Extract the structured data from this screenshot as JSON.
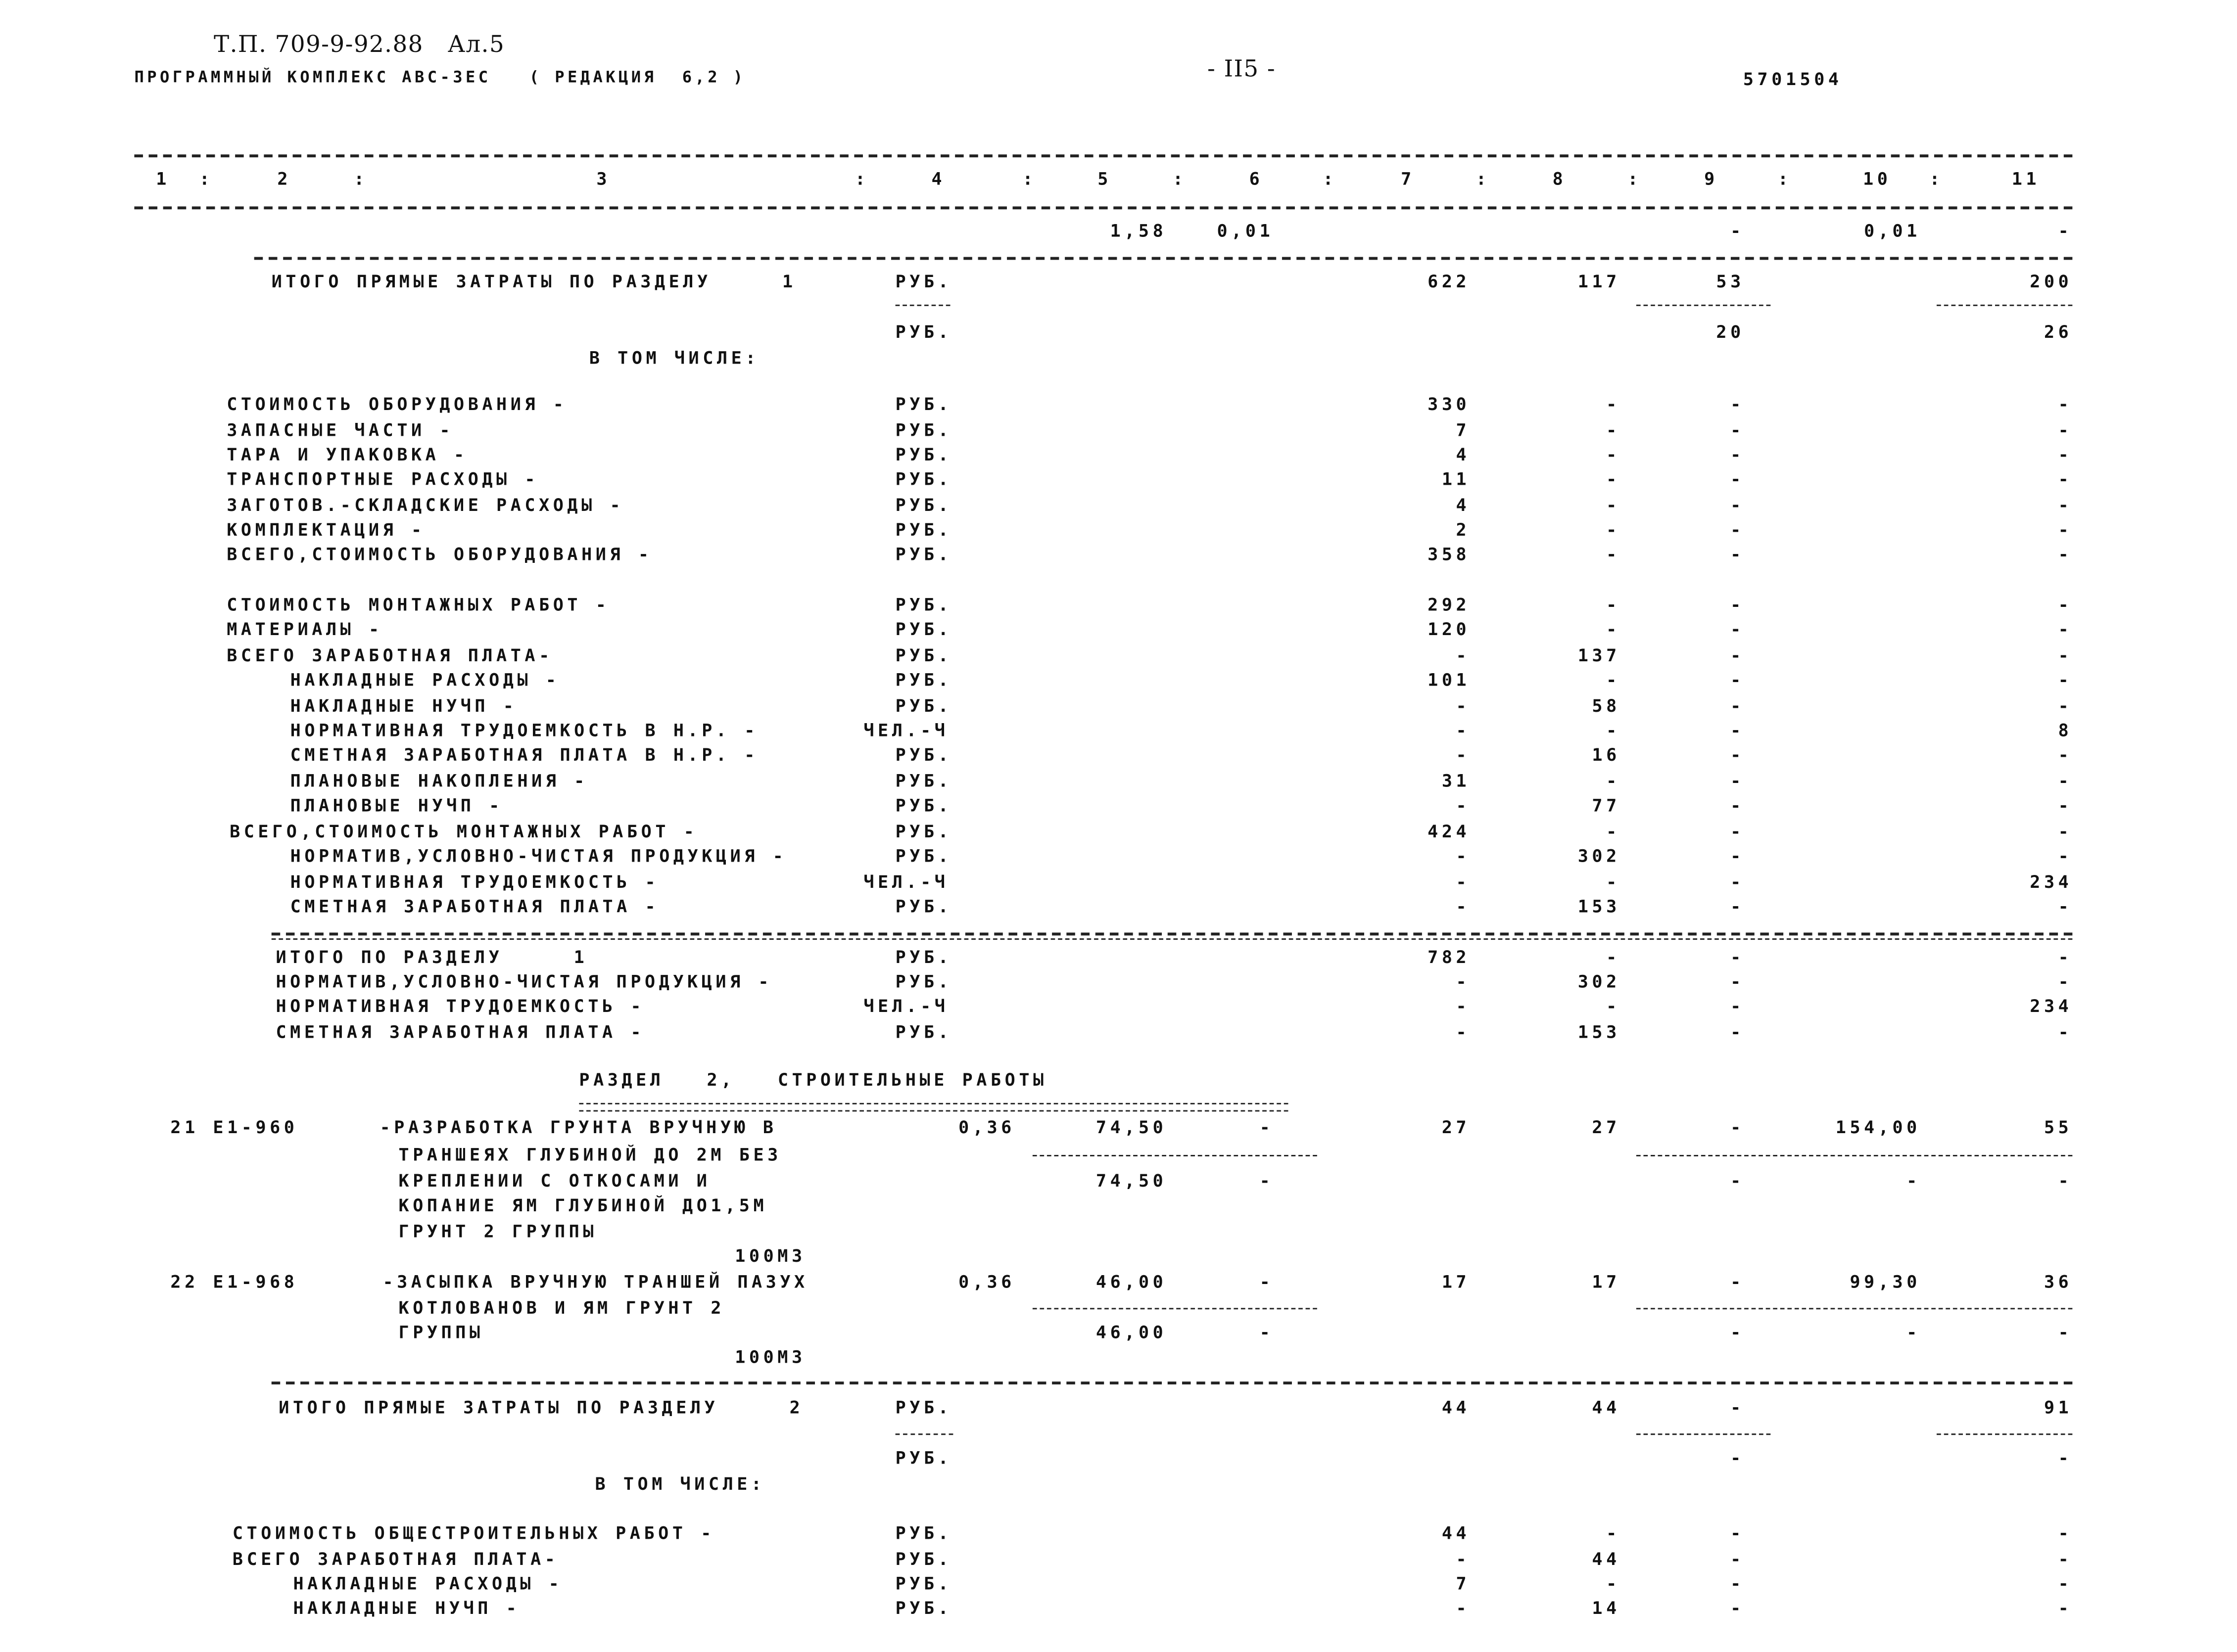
{
  "header": {
    "doc_id": "Т.П. 709-9-92.88   Ал.5",
    "program": "ПРОГРАММНЫЙ КОМПЛЕКС АВС-3ЕС   ( РЕДАКЦИЯ  6,2 )",
    "page_number": "- II5 -",
    "code": "5701504"
  },
  "column_numbers": [
    "1",
    "2",
    "3",
    "4",
    "5",
    "6",
    "7",
    "8",
    "9",
    "10",
    "11"
  ],
  "rows": [
    {
      "label": "",
      "unit": "",
      "values": [
        null,
        "1,58",
        "0,01",
        null,
        null,
        "-",
        "0,01",
        "-"
      ]
    },
    {
      "label": "ИТОГО ПРЯМЫЕ ЗАТРАТЫ ПО РАЗДЕЛУ     1",
      "unit": "РУБ.",
      "values": [
        null,
        null,
        null,
        "622",
        "117",
        "53",
        null,
        "200"
      ]
    },
    {
      "label": "",
      "unit": "РУБ.",
      "values": [
        null,
        null,
        null,
        null,
        null,
        "20",
        null,
        "26"
      ]
    },
    {
      "label": "В ТОМ ЧИСЛЕ:",
      "unit": "",
      "values": []
    },
    {
      "label": "СТОИМОСТЬ ОБОРУДОВАНИЯ -",
      "unit": "РУБ.",
      "values": [
        null,
        null,
        null,
        "330",
        "-",
        "-",
        null,
        "-"
      ]
    },
    {
      "label": "ЗАПАСНЫЕ ЧАСТИ -",
      "unit": "РУБ.",
      "values": [
        null,
        null,
        null,
        "7",
        "-",
        "-",
        null,
        "-"
      ]
    },
    {
      "label": "ТАРА И УПАКОВКА -",
      "unit": "РУБ.",
      "values": [
        null,
        null,
        null,
        "4",
        "-",
        "-",
        null,
        "-"
      ]
    },
    {
      "label": "ТРАНСПОРТНЫЕ РАСХОДЫ -",
      "unit": "РУБ.",
      "values": [
        null,
        null,
        null,
        "11",
        "-",
        "-",
        null,
        "-"
      ]
    },
    {
      "label": "ЗАГОТОВ.-СКЛАДСКИЕ РАСХОДЫ -",
      "unit": "РУБ.",
      "values": [
        null,
        null,
        null,
        "4",
        "-",
        "-",
        null,
        "-"
      ]
    },
    {
      "label": "КОМПЛЕКТАЦИЯ -",
      "unit": "РУБ.",
      "values": [
        null,
        null,
        null,
        "2",
        "-",
        "-",
        null,
        "-"
      ]
    },
    {
      "label": "ВСЕГО,СТОИМОСТЬ ОБОРУДОВАНИЯ -",
      "unit": "РУБ.",
      "values": [
        null,
        null,
        null,
        "358",
        "-",
        "-",
        null,
        "-"
      ]
    },
    {
      "label": "СТОИМОСТЬ МОНТАЖНЫХ РАБОТ -",
      "unit": "РУБ.",
      "values": [
        null,
        null,
        null,
        "292",
        "-",
        "-",
        null,
        "-"
      ]
    },
    {
      "label": "МАТЕРИАЛЫ -",
      "unit": "РУБ.",
      "values": [
        null,
        null,
        null,
        "120",
        "-",
        "-",
        null,
        "-"
      ]
    },
    {
      "label": "ВСЕГО ЗАРАБОТНАЯ ПЛАТА-",
      "unit": "РУБ.",
      "values": [
        null,
        null,
        null,
        "-",
        "137",
        "-",
        null,
        "-"
      ]
    },
    {
      "label": "НАКЛАДНЫЕ РАСХОДЫ -",
      "unit": "РУБ.",
      "values": [
        null,
        null,
        null,
        "101",
        "-",
        "-",
        null,
        "-"
      ]
    },
    {
      "label": "НАКЛАДНЫЕ НУЧП -",
      "unit": "РУБ.",
      "values": [
        null,
        null,
        null,
        "-",
        "58",
        "-",
        null,
        "-"
      ]
    },
    {
      "label": "НОРМАТИВНАЯ ТРУДОЕМКОСТЬ В Н.Р. -",
      "unit": "ЧЕЛ.-Ч",
      "values": [
        null,
        null,
        null,
        "-",
        "-",
        "-",
        null,
        "8"
      ]
    },
    {
      "label": "СМЕТНАЯ ЗАРАБОТНАЯ ПЛАТА В Н.Р. -",
      "unit": "РУБ.",
      "values": [
        null,
        null,
        null,
        "-",
        "16",
        "-",
        null,
        "-"
      ]
    },
    {
      "label": "ПЛАНОВЫЕ НАКОПЛЕНИЯ -",
      "unit": "РУБ.",
      "values": [
        null,
        null,
        null,
        "31",
        "-",
        "-",
        null,
        "-"
      ]
    },
    {
      "label": "ПЛАНОВЫЕ НУЧП -",
      "unit": "РУБ.",
      "values": [
        null,
        null,
        null,
        "-",
        "77",
        "-",
        null,
        "-"
      ]
    },
    {
      "label": "ВСЕГО,СТОИМОСТЬ МОНТАЖНЫХ РАБОТ -",
      "unit": "РУБ.",
      "values": [
        null,
        null,
        null,
        "424",
        "-",
        "-",
        null,
        "-"
      ]
    },
    {
      "label": "НОРМАТИВ,УСЛОВНО-ЧИСТАЯ ПРОДУКЦИЯ -",
      "unit": "РУБ.",
      "values": [
        null,
        null,
        null,
        "-",
        "302",
        "-",
        null,
        "-"
      ]
    },
    {
      "label": "НОРМАТИВНАЯ ТРУДОЕМКОСТЬ -",
      "unit": "ЧЕЛ.-Ч",
      "values": [
        null,
        null,
        null,
        "-",
        "-",
        "-",
        null,
        "234"
      ]
    },
    {
      "label": "СМЕТНАЯ ЗАРАБОТНАЯ ПЛАТА -",
      "unit": "РУБ.",
      "values": [
        null,
        null,
        null,
        "-",
        "153",
        "-",
        null,
        "-"
      ]
    },
    {
      "label": "ИТОГО ПО РАЗДЕЛУ     1",
      "unit": "РУБ.",
      "values": [
        null,
        null,
        null,
        "782",
        "-",
        "-",
        null,
        "-"
      ]
    },
    {
      "label": "НОРМАТИВ,УСЛОВНО-ЧИСТАЯ ПРОДУКЦИЯ -",
      "unit": "РУБ.",
      "values": [
        null,
        null,
        null,
        "-",
        "302",
        "-",
        null,
        "-"
      ]
    },
    {
      "label": "НОРМАТИВНАЯ ТРУДОЕМКОСТЬ -",
      "unit": "ЧЕЛ.-Ч",
      "values": [
        null,
        null,
        null,
        "-",
        "-",
        "-",
        null,
        "234"
      ]
    },
    {
      "label": "СМЕТНАЯ ЗАРАБОТНАЯ ПЛАТА -",
      "unit": "РУБ.",
      "values": [
        null,
        null,
        null,
        "-",
        "153",
        "-",
        null,
        "-"
      ]
    },
    {
      "label": "РАЗДЕЛ   2,   СТРОИТЕЛЬНЫЕ РАБОТЫ",
      "unit": "",
      "values": []
    },
    {
      "code": "21 Е1-960",
      "label": "-РАЗРАБОТКА ГРУНТА ВРУЧНУЮ В",
      "unit": "",
      "values": [
        "0,36",
        "74,50",
        "-",
        "27",
        "27",
        "-",
        "154,00",
        "55"
      ]
    },
    {
      "label": "ТРАНШЕЯХ ГЛУБИНОЙ ДО 2М БЕЗ",
      "unit": "",
      "values": []
    },
    {
      "label": "КРЕПЛЕНИИ С ОТКОСАМИ И",
      "unit": "",
      "values": [
        null,
        "74,50",
        "-",
        null,
        null,
        "-",
        "-",
        "-"
      ]
    },
    {
      "label": "КОПАНИЕ ЯМ ГЛУБИНОЙ ДО1,5М",
      "unit": "",
      "values": []
    },
    {
      "label": "ГРУНТ 2 ГРУППЫ",
      "unit": "",
      "values": []
    },
    {
      "label": "",
      "unit": "",
      "measure": "100М3",
      "values": []
    },
    {
      "code": "22 Е1-968",
      "label": "-ЗАСЫПКА ВРУЧНУЮ ТРАНШЕЙ ПАЗУХ",
      "unit": "",
      "values": [
        "0,36",
        "46,00",
        "-",
        "17",
        "17",
        "-",
        "99,30",
        "36"
      ]
    },
    {
      "label": "КОТЛОВАНОВ И ЯМ ГРУНТ 2",
      "unit": "",
      "values": []
    },
    {
      "label": "ГРУППЫ",
      "unit": "",
      "values": [
        null,
        "46,00",
        "-",
        null,
        null,
        "-",
        "-",
        "-"
      ]
    },
    {
      "label": "",
      "unit": "",
      "measure": "100М3",
      "values": []
    },
    {
      "label": "ИТОГО ПРЯМЫЕ ЗАТРАТЫ ПО РАЗДЕЛУ     2",
      "unit": "РУБ.",
      "values": [
        null,
        null,
        null,
        "44",
        "44",
        "-",
        null,
        "91"
      ]
    },
    {
      "label": "",
      "unit": "РУБ.",
      "values": [
        null,
        null,
        null,
        null,
        null,
        "-",
        null,
        "-"
      ]
    },
    {
      "label": "В ТОМ ЧИСЛЕ:",
      "unit": "",
      "values": []
    },
    {
      "label": "СТОИМОСТЬ ОБЩЕСТРОИТЕЛЬНЫХ РАБОТ -",
      "unit": "РУБ.",
      "values": [
        null,
        null,
        null,
        "44",
        "-",
        "-",
        null,
        "-"
      ]
    },
    {
      "label": "ВСЕГО ЗАРАБОТНАЯ ПЛАТА-",
      "unit": "РУБ.",
      "values": [
        null,
        null,
        null,
        "-",
        "44",
        "-",
        null,
        "-"
      ]
    },
    {
      "label": "НАКЛАДНЫЕ РАСХОДЫ -",
      "unit": "РУБ.",
      "values": [
        null,
        null,
        null,
        "7",
        "-",
        "-",
        null,
        "-"
      ]
    },
    {
      "label": "НАКЛАДНЫЕ НУЧП -",
      "unit": "РУБ.",
      "values": [
        null,
        null,
        null,
        "-",
        "14",
        "-",
        null,
        "-"
      ]
    }
  ]
}
